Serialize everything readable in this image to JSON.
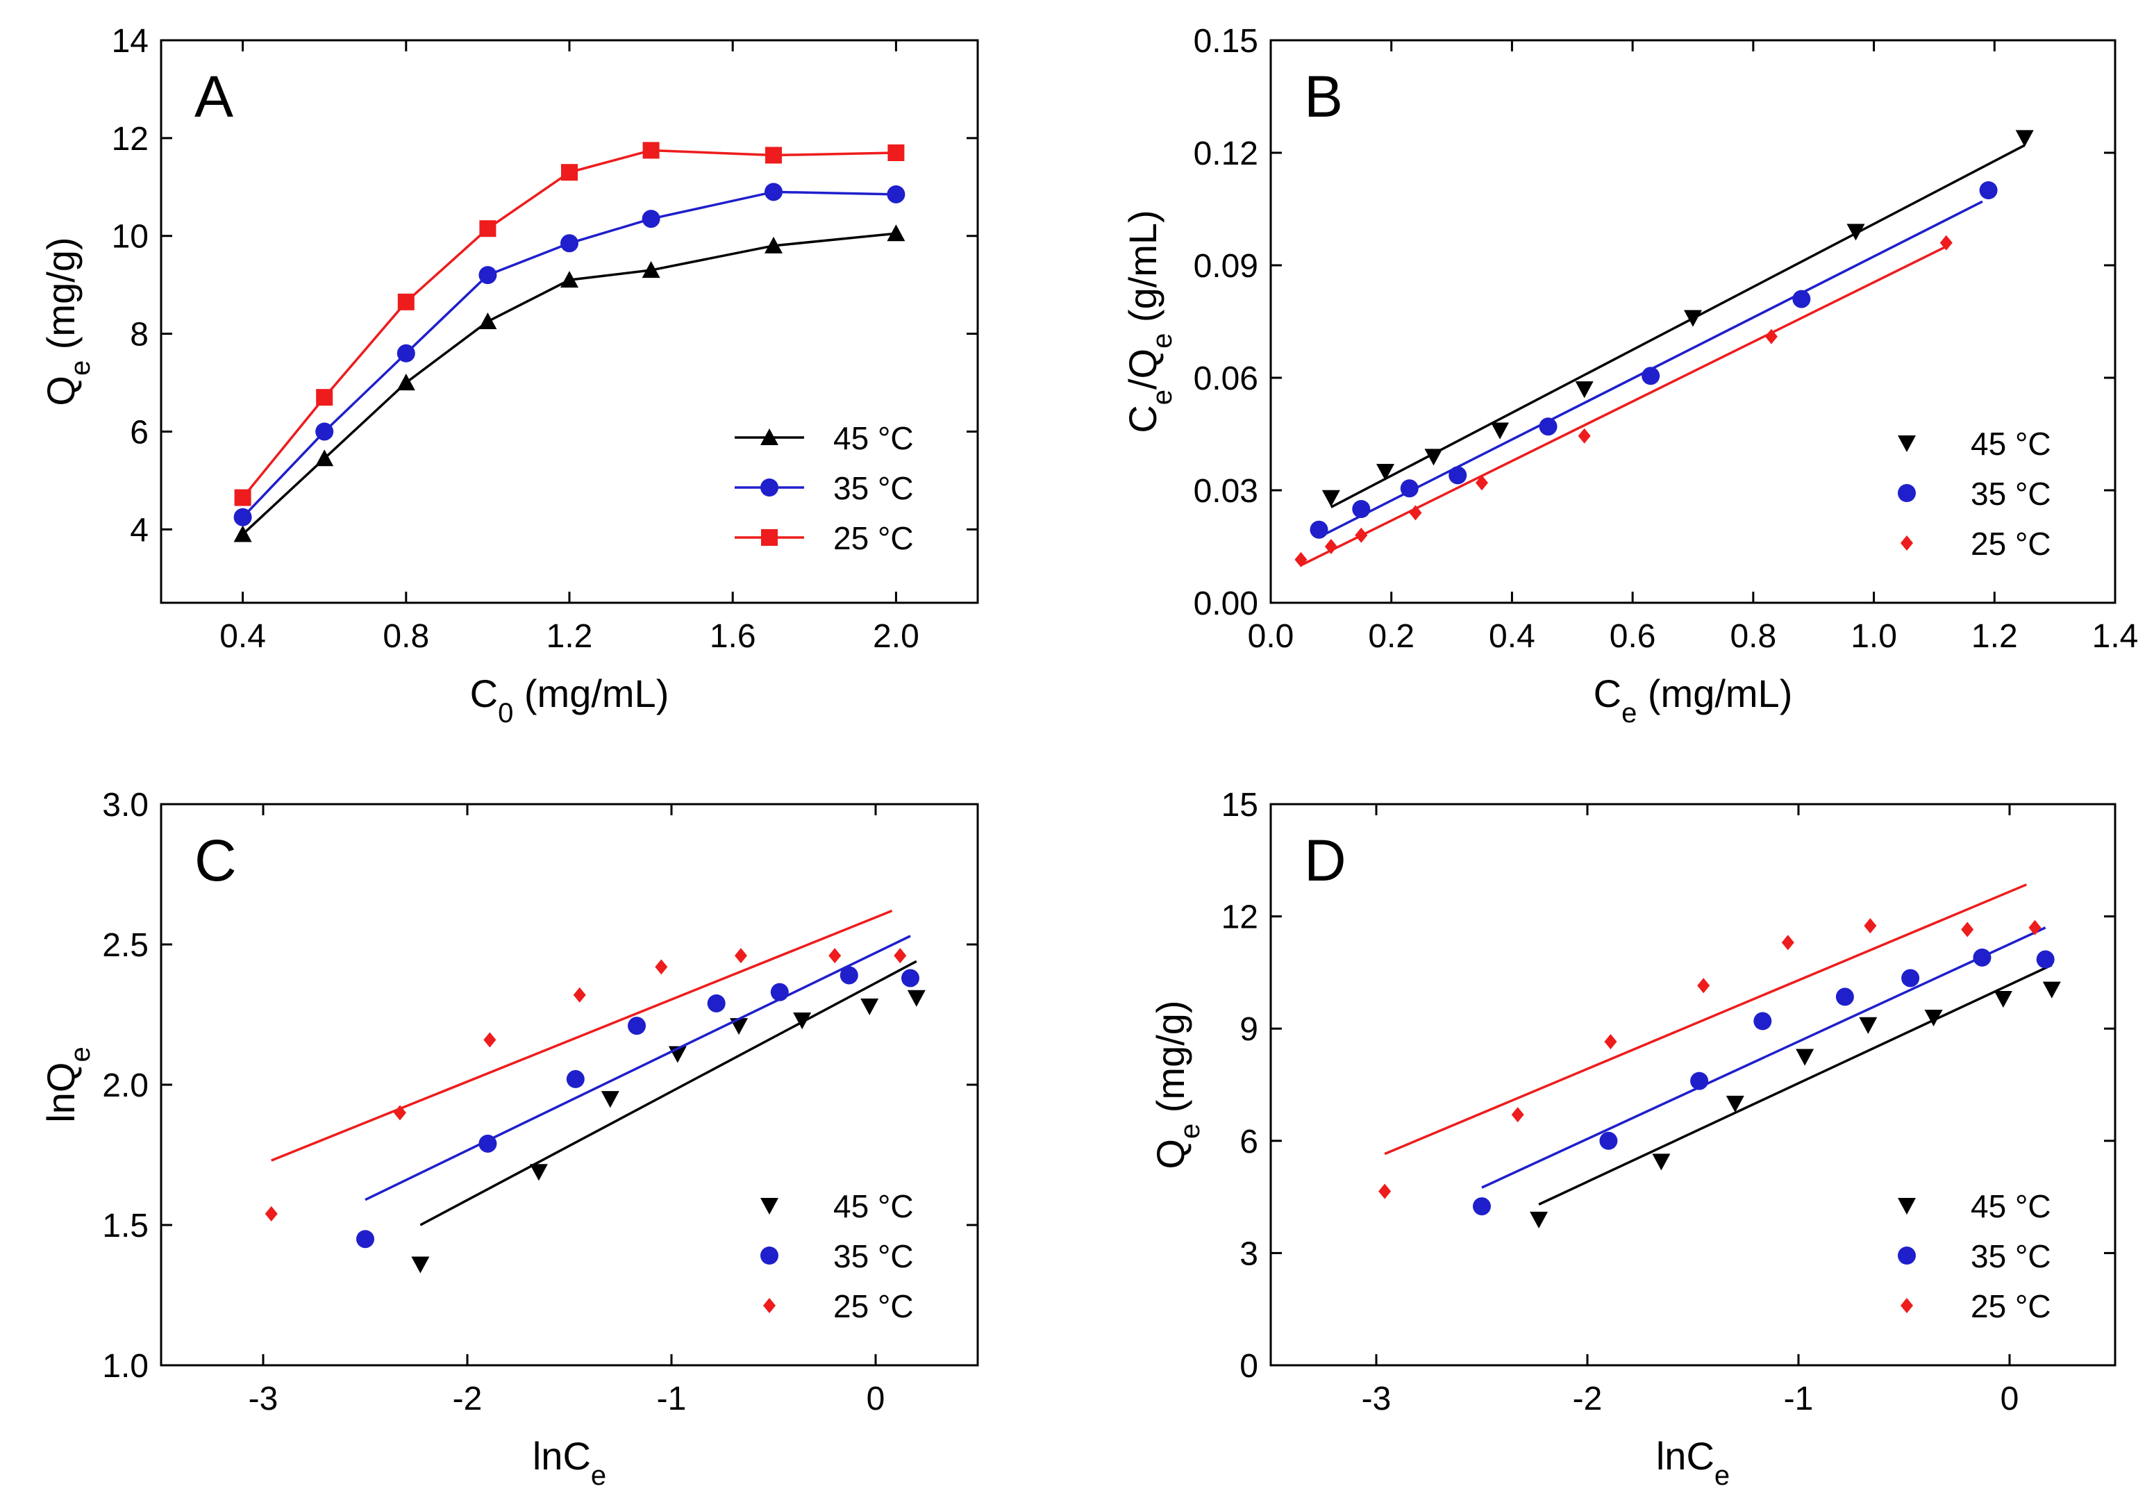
{
  "chart_data": [
    {
      "panel": "A",
      "type": "line",
      "xlabel": "C0 (mg/mL)",
      "xlabel_main": "C",
      "xlabel_sub": "0",
      "xlabel_rest": " (mg/mL)",
      "ylabel": "Qe (mg/g)",
      "ylabel_main": "Q",
      "ylabel_sub": "e",
      "ylabel_rest": " (mg/g)",
      "xlim": [
        0.2,
        2.2
      ],
      "ylim": [
        2.5,
        14
      ],
      "xticks": [
        0.4,
        0.8,
        1.2,
        1.6,
        2.0
      ],
      "xtick_labels": [
        "0.4",
        "0.8",
        "1.2",
        "1.6",
        "2.0"
      ],
      "yticks": [
        4,
        6,
        8,
        10,
        12,
        14
      ],
      "ytick_labels": [
        "4",
        "6",
        "8",
        "10",
        "12",
        "14"
      ],
      "legend_position": "bottom-right",
      "series": [
        {
          "name": "45 °C",
          "label_num": "45",
          "label_unit": "°C",
          "color": "#000000",
          "marker": "triangle-up",
          "line": "connect",
          "x": [
            0.4,
            0.6,
            0.8,
            1.0,
            1.2,
            1.4,
            1.7,
            2.0
          ],
          "y": [
            3.9,
            5.45,
            7.0,
            8.25,
            9.1,
            9.3,
            9.8,
            10.05
          ]
        },
        {
          "name": "35 °C",
          "label_num": "35",
          "label_unit": "°C",
          "color": "#1f1fcc",
          "marker": "circle",
          "line": "connect",
          "x": [
            0.4,
            0.6,
            0.8,
            1.0,
            1.2,
            1.4,
            1.7,
            2.0
          ],
          "y": [
            4.25,
            6.0,
            7.6,
            9.2,
            9.85,
            10.35,
            10.9,
            10.85
          ]
        },
        {
          "name": "25 °C",
          "label_num": "25",
          "label_unit": "°C",
          "color": "#ee1c1c",
          "marker": "square",
          "line": "connect",
          "x": [
            0.4,
            0.6,
            0.8,
            1.0,
            1.2,
            1.4,
            1.7,
            2.0
          ],
          "y": [
            4.65,
            6.7,
            8.65,
            10.15,
            11.3,
            11.75,
            11.65,
            11.7
          ]
        }
      ]
    },
    {
      "panel": "B",
      "type": "scatter",
      "xlabel": "Ce (mg/mL)",
      "xlabel_main": "C",
      "xlabel_sub": "e",
      "xlabel_rest": " (mg/mL)",
      "ylabel": "Ce/Qe (g/mL)",
      "ylabel_main": "C",
      "ylabel_sub": "e",
      "ylabel_mid": "/Q",
      "ylabel_sub2": "e",
      "ylabel_rest": " (g/mL)",
      "xlim": [
        0.0,
        1.4
      ],
      "ylim": [
        0.0,
        0.15
      ],
      "xticks": [
        0.0,
        0.2,
        0.4,
        0.6,
        0.8,
        1.0,
        1.2,
        1.4
      ],
      "xtick_labels": [
        "0.0",
        "0.2",
        "0.4",
        "0.6",
        "0.8",
        "1.0",
        "1.2",
        "1.4"
      ],
      "yticks": [
        0.0,
        0.03,
        0.06,
        0.09,
        0.12,
        0.15
      ],
      "ytick_labels": [
        "0.00",
        "0.03",
        "0.06",
        "0.09",
        "0.12",
        "0.15"
      ],
      "legend_position": "bottom-right",
      "series": [
        {
          "name": "45 °C",
          "label_num": "45",
          "label_unit": "°C",
          "color": "#000000",
          "marker": "triangle-down",
          "x": [
            0.1,
            0.19,
            0.27,
            0.38,
            0.52,
            0.7,
            0.97,
            1.25
          ],
          "y": [
            0.028,
            0.035,
            0.039,
            0.046,
            0.057,
            0.076,
            0.099,
            0.124
          ],
          "fit": {
            "x": [
              0.1,
              1.25
            ],
            "y": [
              0.0255,
              0.122
            ]
          }
        },
        {
          "name": "35 °C",
          "label_num": "35",
          "label_unit": "°C",
          "color": "#1f1fcc",
          "marker": "circle",
          "x": [
            0.08,
            0.15,
            0.23,
            0.31,
            0.46,
            0.63,
            0.88,
            1.19
          ],
          "y": [
            0.0195,
            0.025,
            0.0305,
            0.034,
            0.047,
            0.0605,
            0.081,
            0.11
          ],
          "fit": {
            "x": [
              0.08,
              1.18
            ],
            "y": [
              0.0175,
              0.107
            ]
          }
        },
        {
          "name": "25 °C",
          "label_num": "25",
          "label_unit": "°C",
          "color": "#ee1c1c",
          "marker": "diamond",
          "x": [
            0.05,
            0.1,
            0.15,
            0.24,
            0.35,
            0.52,
            0.83,
            1.12
          ],
          "y": [
            0.0115,
            0.015,
            0.018,
            0.024,
            0.032,
            0.0445,
            0.071,
            0.096
          ],
          "fit": {
            "x": [
              0.05,
              1.12
            ],
            "y": [
              0.01,
              0.095
            ]
          }
        }
      ]
    },
    {
      "panel": "C",
      "type": "scatter",
      "xlabel": "lnCe",
      "xlabel_main": "lnC",
      "xlabel_sub": "e",
      "xlabel_rest": "",
      "ylabel": "lnQe",
      "ylabel_main": "lnQ",
      "ylabel_sub": "e",
      "ylabel_rest": "",
      "xlim": [
        -3.5,
        0.5
      ],
      "ylim": [
        1.0,
        3.0
      ],
      "xticks": [
        -3,
        -2,
        -1,
        0
      ],
      "xtick_labels": [
        "-3",
        "-2",
        "-1",
        "0"
      ],
      "yticks": [
        1.0,
        1.5,
        2.0,
        2.5,
        3.0
      ],
      "ytick_labels": [
        "1.0",
        "1.5",
        "2.0",
        "2.5",
        "3.0"
      ],
      "legend_position": "bottom-right",
      "series": [
        {
          "name": "45 °C",
          "label_num": "45",
          "label_unit": "°C",
          "color": "#000000",
          "marker": "triangle-down",
          "x": [
            -2.23,
            -1.65,
            -1.3,
            -0.97,
            -0.67,
            -0.36,
            -0.03,
            0.2
          ],
          "y": [
            1.36,
            1.69,
            1.95,
            2.11,
            2.21,
            2.23,
            2.28,
            2.31
          ],
          "fit": {
            "x": [
              -2.23,
              0.2
            ],
            "y": [
              1.5,
              2.44
            ]
          }
        },
        {
          "name": "35 °C",
          "label_num": "35",
          "label_unit": "°C",
          "color": "#1f1fcc",
          "marker": "circle",
          "x": [
            -2.5,
            -1.9,
            -1.47,
            -1.17,
            -0.78,
            -0.47,
            -0.13,
            0.17
          ],
          "y": [
            1.45,
            1.79,
            2.02,
            2.21,
            2.29,
            2.33,
            2.39,
            2.38
          ],
          "fit": {
            "x": [
              -2.5,
              0.17
            ],
            "y": [
              1.59,
              2.53
            ]
          }
        },
        {
          "name": "25 °C",
          "label_num": "25",
          "label_unit": "°C",
          "color": "#ee1c1c",
          "marker": "diamond",
          "x": [
            -2.96,
            -2.33,
            -1.89,
            -1.45,
            -1.05,
            -0.66,
            -0.2,
            0.12
          ],
          "y": [
            1.54,
            1.9,
            2.16,
            2.32,
            2.42,
            2.46,
            2.46,
            2.46
          ],
          "fit": {
            "x": [
              -2.96,
              0.08
            ],
            "y": [
              1.73,
              2.62
            ]
          }
        }
      ]
    },
    {
      "panel": "D",
      "type": "scatter",
      "xlabel": "lnCe",
      "xlabel_main": "lnC",
      "xlabel_sub": "e",
      "xlabel_rest": "",
      "ylabel": "Qe (mg/g)",
      "ylabel_main": "Q",
      "ylabel_sub": "e",
      "ylabel_rest": " (mg/g)",
      "xlim": [
        -3.5,
        0.5
      ],
      "ylim": [
        0,
        15
      ],
      "xticks": [
        -3,
        -2,
        -1,
        0
      ],
      "xtick_labels": [
        "-3",
        "-2",
        "-1",
        "0"
      ],
      "yticks": [
        0,
        3,
        6,
        9,
        12,
        15
      ],
      "ytick_labels": [
        "0",
        "3",
        "6",
        "9",
        "12",
        "15"
      ],
      "legend_position": "bottom-right",
      "series": [
        {
          "name": "45 °C",
          "label_num": "45",
          "label_unit": "°C",
          "color": "#000000",
          "marker": "triangle-down",
          "x": [
            -2.23,
            -1.65,
            -1.3,
            -0.97,
            -0.67,
            -0.36,
            -0.03,
            0.2
          ],
          "y": [
            3.9,
            5.45,
            7.0,
            8.25,
            9.1,
            9.3,
            9.8,
            10.05
          ],
          "fit": {
            "x": [
              -2.23,
              0.2
            ],
            "y": [
              4.3,
              10.7
            ]
          }
        },
        {
          "name": "35 °C",
          "label_num": "35",
          "label_unit": "°C",
          "color": "#1f1fcc",
          "marker": "circle",
          "x": [
            -2.5,
            -1.9,
            -1.47,
            -1.17,
            -0.78,
            -0.47,
            -0.13,
            0.17
          ],
          "y": [
            4.25,
            6.0,
            7.6,
            9.2,
            9.85,
            10.35,
            10.9,
            10.85
          ],
          "fit": {
            "x": [
              -2.5,
              0.17
            ],
            "y": [
              4.75,
              11.7
            ]
          }
        },
        {
          "name": "25 °C",
          "label_num": "25",
          "label_unit": "°C",
          "color": "#ee1c1c",
          "marker": "diamond",
          "x": [
            -2.96,
            -2.33,
            -1.89,
            -1.45,
            -1.05,
            -0.66,
            -0.2,
            0.12
          ],
          "y": [
            4.65,
            6.7,
            8.65,
            10.15,
            11.3,
            11.75,
            11.65,
            11.7
          ],
          "fit": {
            "x": [
              -2.96,
              0.08
            ],
            "y": [
              5.65,
              12.85
            ]
          }
        }
      ]
    }
  ]
}
